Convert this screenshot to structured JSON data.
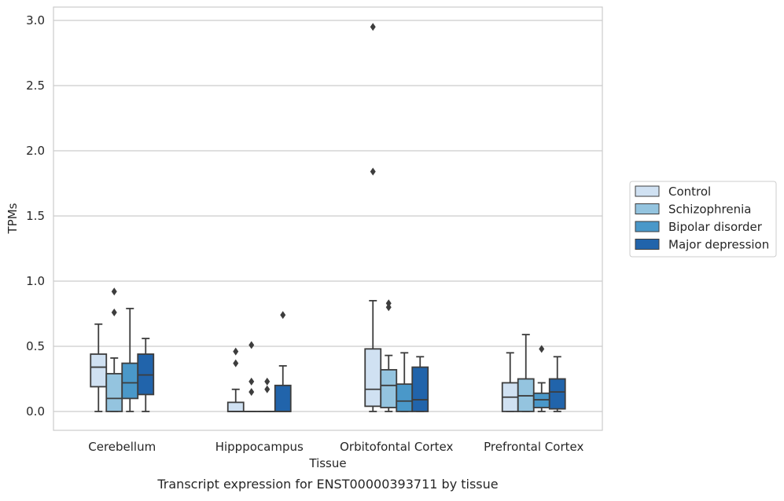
{
  "chart_data": {
    "type": "boxplot",
    "title": "",
    "caption": "Transcript expression for ENST00000393711 by tissue",
    "xlabel": "Tissue",
    "ylabel": "TPMs",
    "ylim": [
      -0.14,
      3.1
    ],
    "yticks": [
      0.0,
      0.5,
      1.0,
      1.5,
      2.0,
      2.5,
      3.0
    ],
    "ytick_labels": [
      "0.0",
      "0.5",
      "1.0",
      "1.5",
      "2.0",
      "2.5",
      "3.0"
    ],
    "grid": "horizontal",
    "legend_position": "right",
    "categories": [
      "Cerebellum",
      "Hipppocampus",
      "Orbitofontal Cortex",
      "Prefrontal Cortex"
    ],
    "series": [
      {
        "name": "Control",
        "color": "#d0e1f2",
        "boxes": [
          {
            "whislo": 0.0,
            "q1": 0.19,
            "med": 0.34,
            "q3": 0.44,
            "whishi": 0.67,
            "fliers": []
          },
          {
            "whislo": 0.0,
            "q1": 0.0,
            "med": 0.0,
            "q3": 0.07,
            "whishi": 0.17,
            "fliers": [
              0.37,
              0.46
            ]
          },
          {
            "whislo": 0.0,
            "q1": 0.04,
            "med": 0.17,
            "q3": 0.48,
            "whishi": 0.85,
            "fliers": [
              1.84,
              2.95
            ]
          },
          {
            "whislo": 0.0,
            "q1": 0.0,
            "med": 0.11,
            "q3": 0.22,
            "whishi": 0.45,
            "fliers": []
          }
        ]
      },
      {
        "name": "Schizophrenia",
        "color": "#94c4df",
        "boxes": [
          {
            "whislo": 0.0,
            "q1": 0.0,
            "med": 0.1,
            "q3": 0.29,
            "whishi": 0.41,
            "fliers": [
              0.76,
              0.92
            ]
          },
          {
            "whislo": 0.0,
            "q1": 0.0,
            "med": 0.0,
            "q3": 0.0,
            "whishi": 0.0,
            "fliers": [
              0.15,
              0.23,
              0.51
            ]
          },
          {
            "whislo": 0.0,
            "q1": 0.03,
            "med": 0.2,
            "q3": 0.32,
            "whishi": 0.43,
            "fliers": [
              0.8,
              0.83
            ]
          },
          {
            "whislo": 0.0,
            "q1": 0.0,
            "med": 0.12,
            "q3": 0.25,
            "whishi": 0.59,
            "fliers": []
          }
        ]
      },
      {
        "name": "Bipolar disorder",
        "color": "#4a98c9",
        "boxes": [
          {
            "whislo": 0.0,
            "q1": 0.1,
            "med": 0.22,
            "q3": 0.37,
            "whishi": 0.79,
            "fliers": []
          },
          {
            "whislo": 0.0,
            "q1": 0.0,
            "med": 0.0,
            "q3": 0.0,
            "whishi": 0.0,
            "fliers": [
              0.17,
              0.23
            ]
          },
          {
            "whislo": 0.0,
            "q1": 0.0,
            "med": 0.08,
            "q3": 0.21,
            "whishi": 0.45,
            "fliers": []
          },
          {
            "whislo": 0.0,
            "q1": 0.03,
            "med": 0.09,
            "q3": 0.14,
            "whishi": 0.22,
            "fliers": [
              0.48
            ]
          }
        ]
      },
      {
        "name": "Major depression",
        "color": "#2164ab",
        "boxes": [
          {
            "whislo": 0.0,
            "q1": 0.13,
            "med": 0.28,
            "q3": 0.44,
            "whishi": 0.56,
            "fliers": []
          },
          {
            "whislo": 0.0,
            "q1": 0.0,
            "med": 0.0,
            "q3": 0.2,
            "whishi": 0.35,
            "fliers": [
              0.74
            ]
          },
          {
            "whislo": 0.0,
            "q1": 0.0,
            "med": 0.09,
            "q3": 0.34,
            "whishi": 0.42,
            "fliers": []
          },
          {
            "whislo": 0.0,
            "q1": 0.02,
            "med": 0.15,
            "q3": 0.25,
            "whishi": 0.42,
            "fliers": []
          }
        ]
      }
    ]
  }
}
